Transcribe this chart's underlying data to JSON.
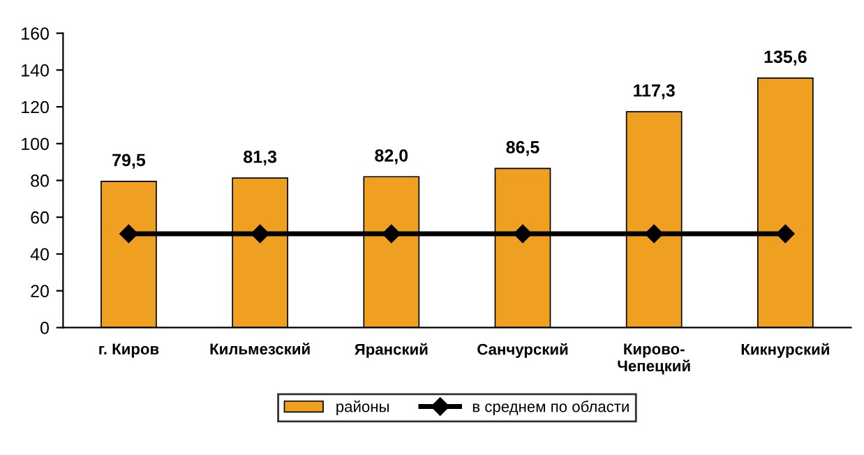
{
  "chart_data": {
    "type": "bar",
    "categories": [
      "г. Киров",
      "Кильмезский",
      "Яранский",
      "Санчурский",
      "Кирово-\nЧепецкий",
      "Кикнурский"
    ],
    "series": [
      {
        "name": "районы",
        "color": "#f0a020",
        "values": [
          79.5,
          81.3,
          82.0,
          86.5,
          117.3,
          135.6
        ],
        "value_labels": [
          "79,5",
          "81,3",
          "82,0",
          "86,5",
          "117,3",
          "135,6"
        ]
      },
      {
        "name": "в среднем по области",
        "type": "line",
        "color": "#000000",
        "marker": "diamond",
        "line_style": "solid",
        "values": [
          51,
          51,
          51,
          51,
          51,
          51
        ]
      }
    ],
    "ylim": [
      0,
      160
    ],
    "yticks": [
      0,
      20,
      40,
      60,
      80,
      100,
      120,
      140,
      160
    ],
    "grid": false,
    "legend": "bottom"
  }
}
